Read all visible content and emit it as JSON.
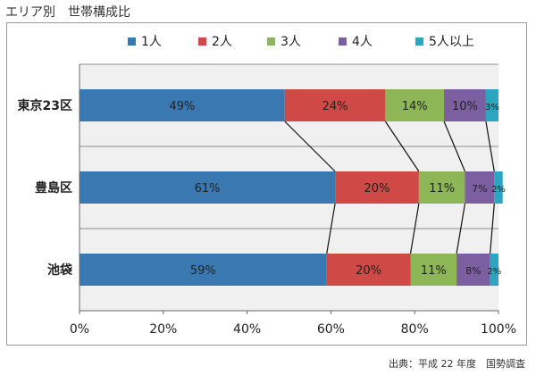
{
  "header": {
    "title": "エリア別　世帯構成比"
  },
  "footer": {
    "source": "出典：平成 22 年度　国勢調査"
  },
  "chart_data": {
    "type": "bar",
    "orientation": "horizontal",
    "stacked": true,
    "percent_stacked": true,
    "title": "",
    "xlabel": "",
    "ylabel": "",
    "categories": [
      "東京23区",
      "豊島区",
      "池袋"
    ],
    "xlim": [
      0,
      100
    ],
    "x_ticks": [
      "0%",
      "20%",
      "40%",
      "60%",
      "80%",
      "100%"
    ],
    "legend_position": "top",
    "grid": "horizontal-category-lines",
    "series": [
      {
        "name": "1人",
        "color": "#3a78b1",
        "values": [
          49,
          61,
          59
        ],
        "labels": [
          "49%",
          "61%",
          "59%"
        ]
      },
      {
        "name": "2人",
        "color": "#cf4a47",
        "values": [
          24,
          20,
          20
        ],
        "labels": [
          "24%",
          "20%",
          "20%"
        ]
      },
      {
        "name": "3人",
        "color": "#8db656",
        "values": [
          14,
          11,
          11
        ],
        "labels": [
          "14%",
          "11%",
          "11%"
        ]
      },
      {
        "name": "4人",
        "color": "#7c5fa0",
        "values": [
          10,
          7,
          8
        ],
        "labels": [
          "10%",
          "7%",
          "8%"
        ]
      },
      {
        "name": "5人以上",
        "color": "#2aa6c0",
        "values": [
          3,
          2,
          2
        ],
        "labels": [
          "3%",
          "2%",
          "2%"
        ]
      }
    ],
    "series_lines": true
  }
}
